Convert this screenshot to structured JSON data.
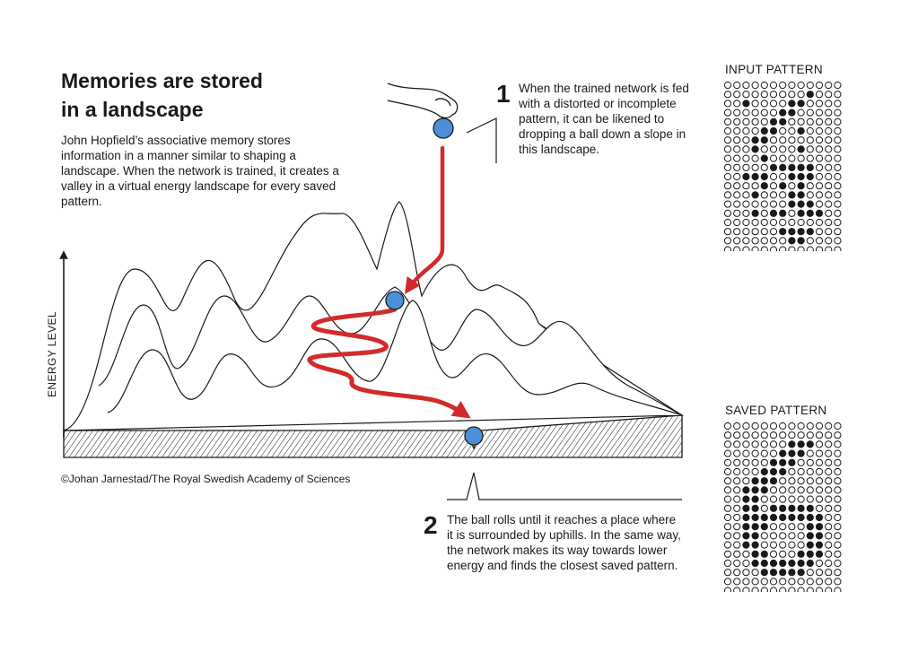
{
  "heading": {
    "title_line1": "Memories are stored",
    "title_line2": "in a landscape",
    "intro": "John Hopfield’s associative memory stores information in a manner similar to shaping a landscape. When the network is trained, it creates a valley in a virtual energy landscape for every saved pattern."
  },
  "axis": {
    "ylabel": "ENERGY LEVEL"
  },
  "steps": [
    {
      "number": "1",
      "text": "When the trained network is fed with a distorted or incomplete pattern, it can be likened to dropping a ball down a slope in this landscape."
    },
    {
      "number": "2",
      "text": "The ball rolls until it reaches a place where it is surrounded by uphills. In the same way, the network makes its way towards lower energy and finds the closest saved pattern."
    }
  ],
  "credit": "©Johan Jarnestad/The Royal Swedish Academy of Sciences",
  "patterns": {
    "input_label": "INPUT PATTERN",
    "saved_label": "SAVED PATTERN",
    "input_grid": [
      "0000000000000",
      "0000000001000",
      "0010000110000",
      "0000001100000",
      "0000011000000",
      "0000110010000",
      "0001100000000",
      "0001000010000",
      "0000100000000",
      "0000011111000",
      "0011100111000",
      "0000101010000",
      "0001000110000",
      "0000000111000",
      "0001011011100",
      "0000000000000",
      "0000001111000",
      "0000000110000",
      "0000000000000"
    ],
    "saved_grid": [
      "0000000000000",
      "0000000000000",
      "0000000111000",
      "0000001110000",
      "0000011100000",
      "0000111000000",
      "0001110000000",
      "0011100000000",
      "0011000000000",
      "0011011111000",
      "0011111111100",
      "0011100001100",
      "0011000001100",
      "0011000001100",
      "0001100011100",
      "0001111111000",
      "0000111110000",
      "0000000000000",
      "0000000000000"
    ]
  },
  "colors": {
    "arrow": "#d22b2b",
    "ball": "#4a90d9",
    "ink": "#1a1a1a"
  }
}
